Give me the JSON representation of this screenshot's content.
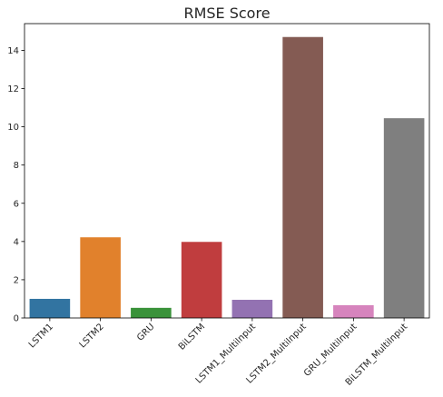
{
  "chart_data": {
    "type": "bar",
    "title": "RMSE Score",
    "xlabel": "",
    "ylabel": "",
    "categories": [
      "LSTM1",
      "LSTM2",
      "GRU",
      "BiLSTM",
      "LSTM1_MultiInput",
      "LSTM2_MultiInput",
      "GRU_MultiInput",
      "BiLSTM_MultiInput"
    ],
    "values": [
      1.0,
      4.22,
      0.53,
      3.98,
      0.95,
      14.7,
      0.67,
      10.45
    ],
    "colors": [
      "#3274a1",
      "#e1812c",
      "#3a923a",
      "#c03d3e",
      "#9372b2",
      "#845b53",
      "#d684bd",
      "#7f7f7f"
    ],
    "ylim": [
      0,
      15.4
    ],
    "yticks": [
      0,
      2,
      4,
      6,
      8,
      10,
      12,
      14
    ],
    "ytick_labels": [
      "0",
      "2",
      "4",
      "6",
      "8",
      "10",
      "12",
      "14"
    ],
    "grid": false,
    "legend": "none"
  }
}
